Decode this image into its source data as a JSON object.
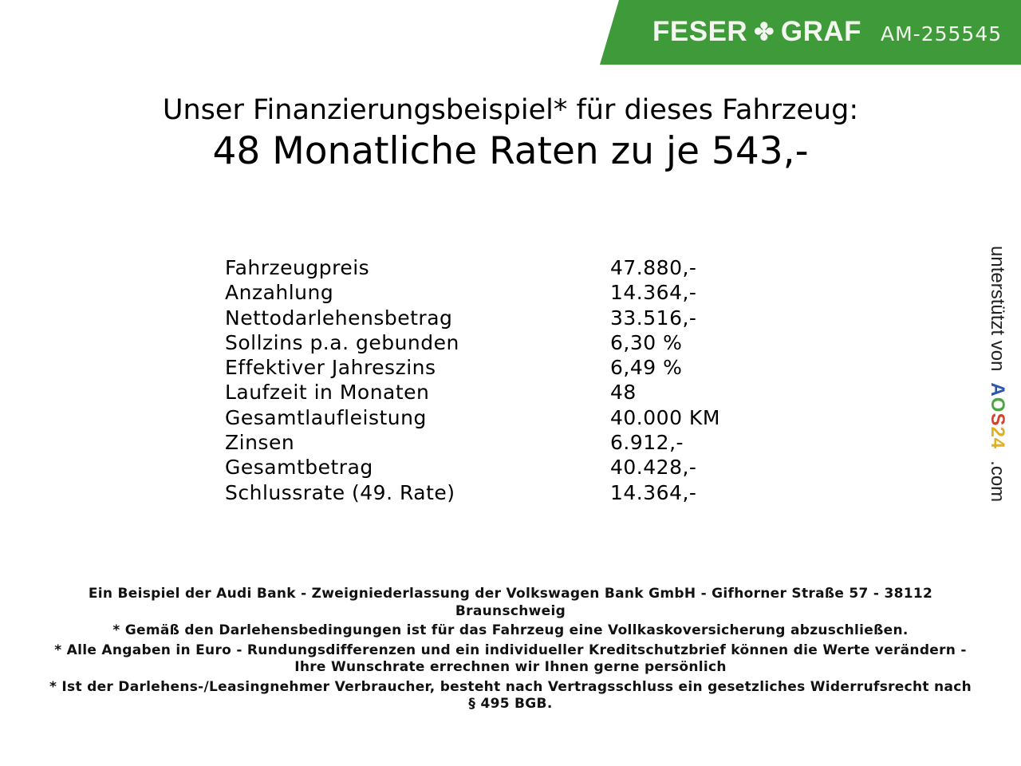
{
  "header": {
    "brand_left": "FESER",
    "brand_right": "GRAF",
    "vehicle_code": "AM-255545",
    "brand_color": "#3f9b3a",
    "brand_icon": "clover-icon"
  },
  "title": {
    "line1": "Unser Finanzierungsbeispiel* für dieses Fahrzeug:",
    "line2": "48 Monatliche Raten zu je 543,-"
  },
  "rows": [
    {
      "label": "Fahrzeugpreis",
      "value": "47.880,-"
    },
    {
      "label": "Anzahlung",
      "value": "14.364,-"
    },
    {
      "label": "Nettodarlehensbetrag",
      "value": "33.516,-"
    },
    {
      "label": "Sollzins p.a. gebunden",
      "value": "6,30 %"
    },
    {
      "label": "Effektiver Jahreszins",
      "value": "6,49 %"
    },
    {
      "label": "Laufzeit in Monaten",
      "value": "48"
    },
    {
      "label": "Gesamtlaufleistung",
      "value": "40.000 KM"
    },
    {
      "label": "Zinsen",
      "value": "6.912,-"
    },
    {
      "label": "Gesamtbetrag",
      "value": "40.428,-"
    },
    {
      "label": "Schlussrate (49. Rate)",
      "value": "14.364,-"
    }
  ],
  "footer": [
    "Ein Beispiel der Audi Bank - Zweigniederlassung der Volkswagen Bank GmbH - Gifhorner Straße 57 - 38112 Braunschweig",
    "* Gemäß den Darlehensbedingungen ist für das Fahrzeug eine Vollkaskoversicherung abzuschließen.",
    "* Alle Angaben in Euro - Rundungsdifferenzen und ein individueller Kreditschutzbrief können die Werte verändern - Ihre Wunschrate errechnen wir Ihnen gerne persönlich",
    "* Ist der Darlehens-/Leasingnehmer Verbraucher, besteht nach Vertragsschluss ein gesetzliches Widerrufsrecht nach § 495 BGB."
  ],
  "side": {
    "text": "unterstützt von",
    "logo": "AOS24",
    "domain": ".com"
  }
}
